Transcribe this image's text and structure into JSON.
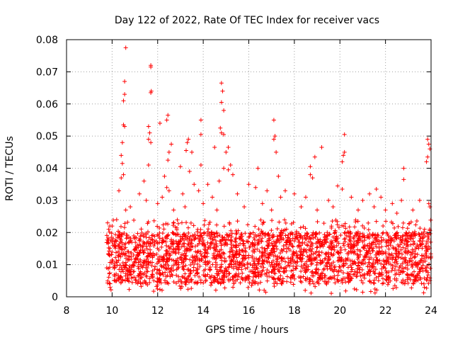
{
  "chart_data": {
    "type": "scatter",
    "title": "Day 122 of 2022, Rate Of TEC Index for receiver vacs",
    "xlabel": "GPS time / hours",
    "ylabel": "ROTI / TECUs",
    "xlim": [
      8,
      24
    ],
    "ylim": [
      0,
      0.08
    ],
    "x_ticks": [
      8,
      10,
      12,
      14,
      16,
      18,
      20,
      22,
      24
    ],
    "x_tick_labels": [
      "8",
      "10",
      "12",
      "14",
      "16",
      "18",
      "20",
      "22",
      "24"
    ],
    "y_ticks": [
      0,
      0.01,
      0.02,
      0.03,
      0.04,
      0.05,
      0.06,
      0.07,
      0.08
    ],
    "y_tick_labels": [
      "0",
      "0.01",
      "0.02",
      "0.03",
      "0.04",
      "0.05",
      "0.06",
      "0.07",
      "0.08"
    ],
    "grid": true,
    "marker": "plus",
    "colors": {
      "series": "#ff0000",
      "grid": "#a0a0a0",
      "axes": "#000000"
    },
    "series": [
      {
        "points": [
          [
            10.6,
            0.0775
          ],
          [
            11.7,
            0.072
          ],
          [
            11.7,
            0.0715
          ],
          [
            10.55,
            0.067
          ],
          [
            10.55,
            0.063
          ],
          [
            10.5,
            0.061
          ],
          [
            11.72,
            0.064
          ],
          [
            11.7,
            0.0635
          ],
          [
            14.8,
            0.0665
          ],
          [
            14.85,
            0.064
          ],
          [
            14.8,
            0.0605
          ],
          [
            14.9,
            0.058
          ],
          [
            12.45,
            0.0565
          ],
          [
            12.4,
            0.055
          ],
          [
            12.1,
            0.054
          ],
          [
            13.9,
            0.055
          ],
          [
            17.1,
            0.055
          ],
          [
            10.5,
            0.0535
          ],
          [
            10.55,
            0.053
          ],
          [
            11.6,
            0.053
          ],
          [
            11.65,
            0.051
          ],
          [
            11.6,
            0.049
          ],
          [
            11.7,
            0.048
          ],
          [
            14.75,
            0.0525
          ],
          [
            14.8,
            0.051
          ],
          [
            14.9,
            0.0505
          ],
          [
            13.35,
            0.049
          ],
          [
            13.3,
            0.048
          ],
          [
            13.9,
            0.0505
          ],
          [
            17.15,
            0.05
          ],
          [
            17.1,
            0.049
          ],
          [
            20.2,
            0.0505
          ],
          [
            23.85,
            0.049
          ],
          [
            23.9,
            0.0475
          ],
          [
            23.95,
            0.046
          ],
          [
            10.45,
            0.048
          ],
          [
            12.6,
            0.0475
          ],
          [
            12.5,
            0.045
          ],
          [
            13.25,
            0.0455
          ],
          [
            13.5,
            0.045
          ],
          [
            14.5,
            0.0465
          ],
          [
            15.1,
            0.0465
          ],
          [
            15.0,
            0.045
          ],
          [
            17.2,
            0.045
          ],
          [
            19.2,
            0.0465
          ],
          [
            20.2,
            0.045
          ],
          [
            20.15,
            0.044
          ],
          [
            18.9,
            0.0435
          ],
          [
            23.85,
            0.0435
          ],
          [
            23.8,
            0.042
          ],
          [
            10.4,
            0.044
          ],
          [
            10.45,
            0.0415
          ],
          [
            12.45,
            0.0425
          ],
          [
            15.2,
            0.041
          ],
          [
            15.1,
            0.0395
          ],
          [
            14.9,
            0.04
          ],
          [
            13.0,
            0.0405
          ],
          [
            13.4,
            0.039
          ],
          [
            13.9,
            0.041
          ],
          [
            16.4,
            0.04
          ],
          [
            18.7,
            0.0405
          ],
          [
            20.1,
            0.042
          ],
          [
            22.8,
            0.04
          ],
          [
            11.6,
            0.041
          ],
          [
            17.3,
            0.0375
          ],
          [
            18.7,
            0.038
          ],
          [
            18.8,
            0.037
          ],
          [
            22.8,
            0.0365
          ],
          [
            10.5,
            0.038
          ],
          [
            12.3,
            0.0375
          ],
          [
            15.3,
            0.038
          ],
          [
            16.0,
            0.035
          ],
          [
            10.4,
            0.037
          ],
          [
            11.4,
            0.036
          ],
          [
            12.4,
            0.034
          ],
          [
            12.5,
            0.033
          ],
          [
            13.6,
            0.035
          ],
          [
            14.2,
            0.035
          ],
          [
            14.7,
            0.036
          ],
          [
            19.9,
            0.0345
          ],
          [
            20.1,
            0.0335
          ],
          [
            21.6,
            0.0335
          ],
          [
            22.7,
            0.03
          ],
          [
            10.3,
            0.033
          ],
          [
            11.2,
            0.032
          ],
          [
            11.5,
            0.03
          ],
          [
            12.2,
            0.031
          ],
          [
            13.1,
            0.032
          ],
          [
            13.8,
            0.033
          ],
          [
            14.4,
            0.031
          ],
          [
            15.5,
            0.032
          ],
          [
            16.3,
            0.034
          ],
          [
            16.8,
            0.033
          ],
          [
            17.4,
            0.031
          ],
          [
            17.6,
            0.033
          ],
          [
            18.0,
            0.032
          ],
          [
            18.5,
            0.031
          ],
          [
            19.5,
            0.03
          ],
          [
            20.5,
            0.031
          ],
          [
            21.0,
            0.03
          ],
          [
            21.3,
            0.032
          ],
          [
            21.8,
            0.031
          ],
          [
            22.3,
            0.029
          ],
          [
            23.5,
            0.03
          ],
          [
            23.9,
            0.029
          ],
          [
            10.6,
            0.027
          ],
          [
            10.8,
            0.028
          ],
          [
            12.0,
            0.029
          ],
          [
            12.7,
            0.027
          ],
          [
            13.2,
            0.028
          ],
          [
            14.0,
            0.029
          ],
          [
            14.6,
            0.027
          ],
          [
            15.8,
            0.028
          ],
          [
            16.6,
            0.029
          ],
          [
            17.0,
            0.027
          ],
          [
            18.3,
            0.028
          ],
          [
            19.0,
            0.027
          ],
          [
            19.7,
            0.028
          ],
          [
            20.8,
            0.027
          ],
          [
            21.5,
            0.028
          ],
          [
            22.0,
            0.027
          ],
          [
            22.5,
            0.026
          ],
          [
            23.2,
            0.027
          ],
          [
            23.95,
            0.028
          ],
          [
            9.9,
            0.022
          ],
          [
            9.85,
            0.021
          ],
          [
            10.0,
            0.022
          ],
          [
            10.2,
            0.024
          ]
        ]
      }
    ]
  }
}
